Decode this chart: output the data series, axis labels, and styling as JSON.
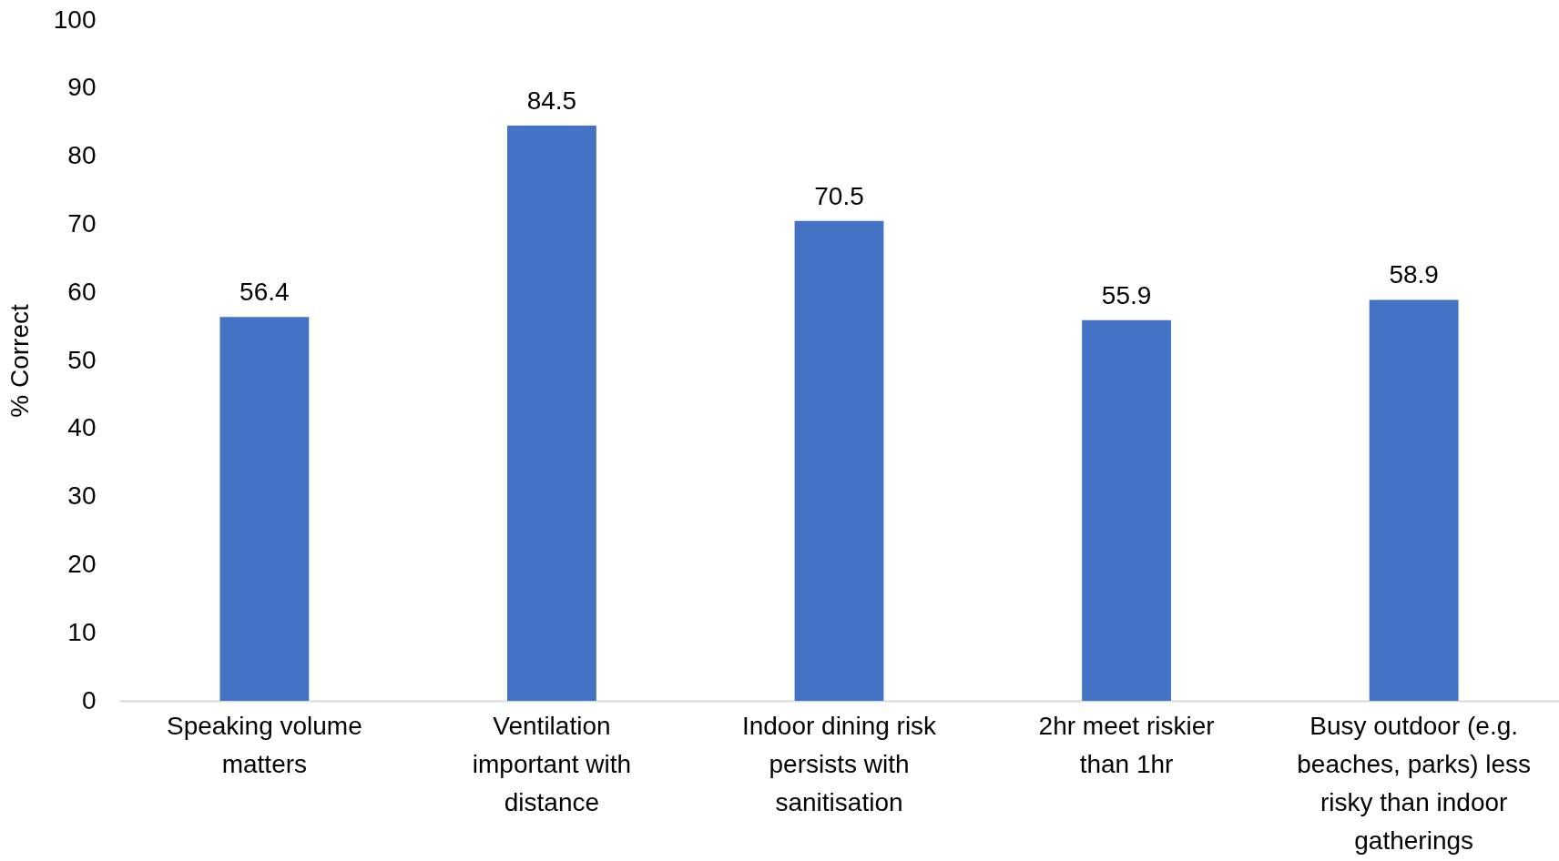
{
  "chart_data": {
    "type": "bar",
    "ylabel": "% Correct",
    "categories": [
      "Speaking volume matters",
      "Ventilation important with distance",
      "Indoor dining risk persists with sanitisation",
      "2hr meet riskier than 1hr",
      "Busy outdoor (e.g. beaches, parks) less risky than indoor gatherings"
    ],
    "values": [
      56.4,
      84.5,
      70.5,
      55.9,
      58.9
    ],
    "color": "#4472c4",
    "ylim": [
      0,
      100
    ],
    "yticks": [
      0,
      10,
      20,
      30,
      40,
      50,
      60,
      70,
      80,
      90,
      100
    ],
    "grid": false,
    "data_labels": true
  }
}
